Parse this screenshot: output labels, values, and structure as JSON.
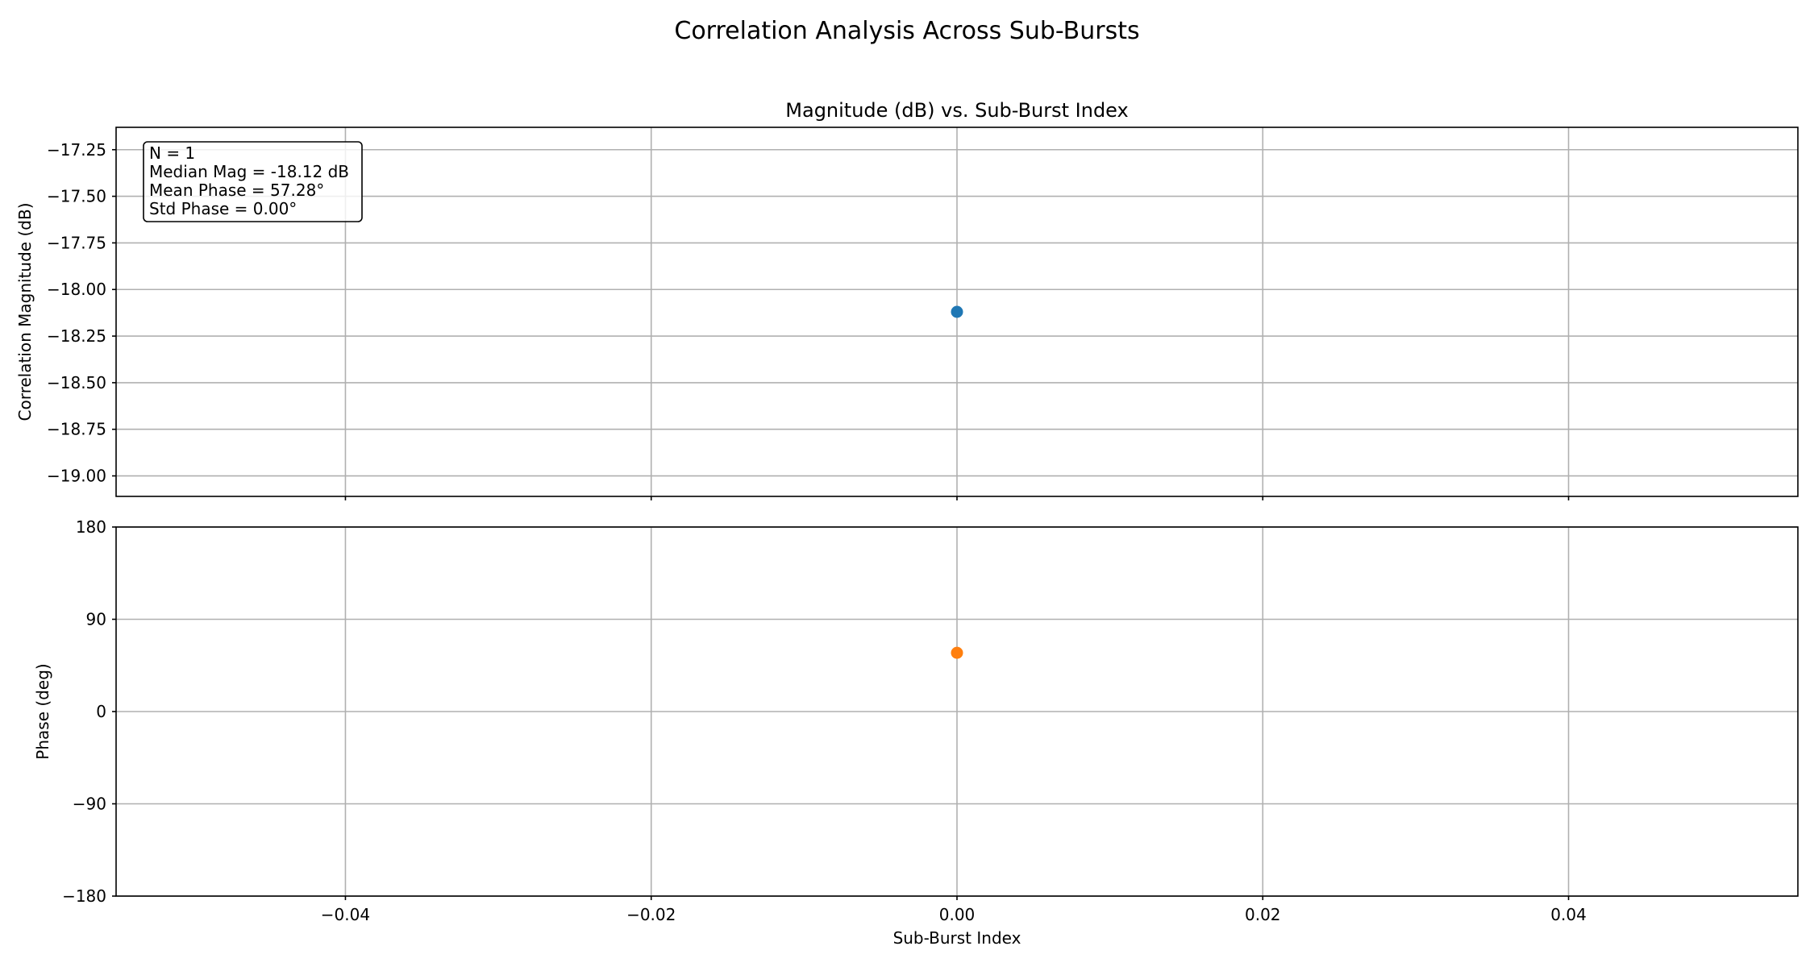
{
  "figure": {
    "title": "Correlation Analysis Across Sub-Bursts"
  },
  "chart_data": [
    {
      "type": "scatter",
      "title": "Magnitude (dB) vs. Sub-Burst Index",
      "xlabel": "",
      "ylabel": "Correlation Magnitude (dB)",
      "xlim": [
        -0.055,
        0.055
      ],
      "ylim": [
        -19.11,
        -17.13
      ],
      "xticks": [
        -0.04,
        -0.02,
        0.0,
        0.02,
        0.04
      ],
      "xticklabels": [],
      "yticks": [
        -17.25,
        -17.5,
        -17.75,
        -18.0,
        -18.25,
        -18.5,
        -18.75,
        -19.0
      ],
      "yticklabels": [
        "−17.25",
        "−17.50",
        "−17.75",
        "−18.00",
        "−18.25",
        "−18.50",
        "−18.75",
        "−19.00"
      ],
      "grid": true,
      "series": [
        {
          "x": [
            0
          ],
          "y": [
            -18.12
          ],
          "color": "#1f77b4"
        }
      ],
      "annotation": {
        "location": "top-left",
        "lines": [
          "N = 1",
          "Median Mag = -18.12 dB",
          "Mean Phase = 57.28°",
          "Std Phase = 0.00°"
        ]
      }
    },
    {
      "type": "scatter",
      "title": "",
      "xlabel": "Sub-Burst Index",
      "ylabel": "Phase (deg)",
      "xlim": [
        -0.055,
        0.055
      ],
      "ylim": [
        -180,
        180
      ],
      "xticks": [
        -0.04,
        -0.02,
        0.0,
        0.02,
        0.04
      ],
      "xticklabels": [
        "−0.04",
        "−0.02",
        "0.00",
        "0.02",
        "0.04"
      ],
      "yticks": [
        180,
        90,
        0,
        -90,
        -180
      ],
      "yticklabels": [
        "180",
        "90",
        "0",
        "−90",
        "−180"
      ],
      "grid": true,
      "series": [
        {
          "x": [
            0
          ],
          "y": [
            57.28
          ],
          "color": "#ff7f0e"
        }
      ]
    }
  ]
}
